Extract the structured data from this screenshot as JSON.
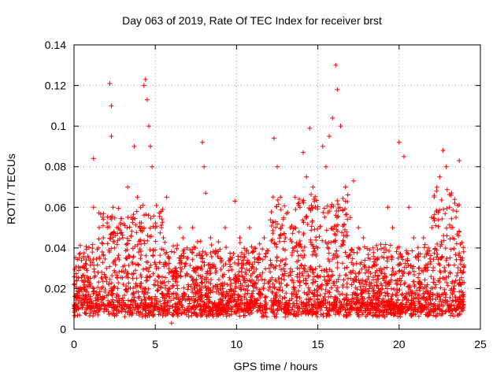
{
  "chart_data": {
    "type": "scatter",
    "title": "Day 063 of 2019, Rate Of TEC Index for receiver brst",
    "xlabel": "GPS time / hours",
    "ylabel": "ROTI / TECUs",
    "xlim": [
      0,
      25
    ],
    "ylim": [
      0,
      0.14
    ],
    "xticks": [
      0,
      5,
      10,
      15,
      20,
      25
    ],
    "xtick_labels": [
      "0",
      "5",
      "10",
      "15",
      "20",
      "25"
    ],
    "yticks": [
      0,
      0.02,
      0.04,
      0.06,
      0.08,
      0.1,
      0.12,
      0.14
    ],
    "ytick_labels": [
      "0",
      "0.02",
      "0.04",
      "0.06",
      "0.08",
      "0.1",
      "0.12",
      "0.14"
    ],
    "grid": true,
    "marker": "+",
    "color": "#ff0000",
    "series": [
      {
        "name": "ROTI",
        "x": [
          0.1,
          0.3,
          0.5,
          0.8,
          1.0,
          1.2,
          1.2,
          1.5,
          1.8,
          2.0,
          2.2,
          2.3,
          2.3,
          2.4,
          2.5,
          2.7,
          3.0,
          3.3,
          3.5,
          3.7,
          3.9,
          4.1,
          4.3,
          4.4,
          4.5,
          4.6,
          4.7,
          4.8,
          5.0,
          5.2,
          5.5,
          5.7,
          5.9,
          6.0,
          6.2,
          6.5,
          6.7,
          7.0,
          7.3,
          7.6,
          7.9,
          8.0,
          8.1,
          8.4,
          8.7,
          9.0,
          9.3,
          9.6,
          9.9,
          10.2,
          10.5,
          10.8,
          11.1,
          11.4,
          11.7,
          12.0,
          12.3,
          12.5,
          12.7,
          13.0,
          13.3,
          13.6,
          13.9,
          14.1,
          14.3,
          14.5,
          14.7,
          15.0,
          15.3,
          15.5,
          15.7,
          15.9,
          16.1,
          16.2,
          16.4,
          16.7,
          17.0,
          17.2,
          17.5,
          17.8,
          18.1,
          18.4,
          18.7,
          19.0,
          19.3,
          19.6,
          19.9,
          20.0,
          20.3,
          20.6,
          20.9,
          21.2,
          21.5,
          21.8,
          22.0,
          22.3,
          22.5,
          22.7,
          22.9,
          23.1,
          23.3,
          23.5,
          23.7,
          23.9
        ],
        "y": [
          0.012,
          0.02,
          0.015,
          0.01,
          0.025,
          0.084,
          0.06,
          0.04,
          0.045,
          0.03,
          0.121,
          0.11,
          0.095,
          0.06,
          0.04,
          0.035,
          0.045,
          0.07,
          0.055,
          0.09,
          0.065,
          0.06,
          0.12,
          0.123,
          0.113,
          0.1,
          0.09,
          0.08,
          0.05,
          0.03,
          0.045,
          0.065,
          0.02,
          0.003,
          0.03,
          0.05,
          0.045,
          0.035,
          0.05,
          0.03,
          0.092,
          0.08,
          0.067,
          0.045,
          0.03,
          0.02,
          0.05,
          0.035,
          0.063,
          0.045,
          0.025,
          0.05,
          0.04,
          0.035,
          0.045,
          0.03,
          0.094,
          0.08,
          0.065,
          0.045,
          0.05,
          0.065,
          0.06,
          0.087,
          0.075,
          0.099,
          0.07,
          0.04,
          0.09,
          0.08,
          0.095,
          0.104,
          0.13,
          0.118,
          0.1,
          0.07,
          0.055,
          0.073,
          0.05,
          0.045,
          0.035,
          0.04,
          0.035,
          0.025,
          0.06,
          0.05,
          0.04,
          0.092,
          0.085,
          0.06,
          0.045,
          0.03,
          0.045,
          0.04,
          0.055,
          0.068,
          0.075,
          0.088,
          0.08,
          0.06,
          0.045,
          0.055,
          0.083,
          0.035
        ]
      }
    ]
  }
}
